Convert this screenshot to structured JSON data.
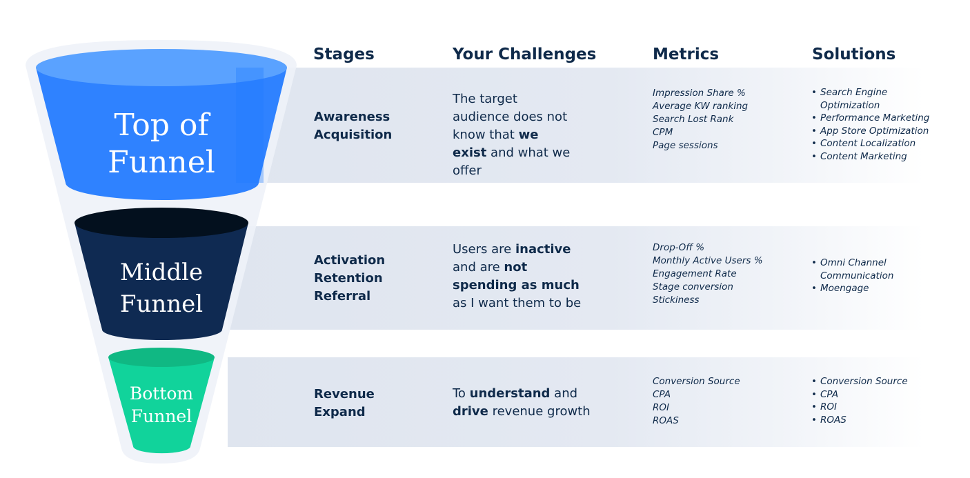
{
  "headers": {
    "stages": "Stages",
    "challenges": "Your Challenges",
    "metrics": "Metrics",
    "solutions": "Solutions"
  },
  "colors": {
    "top": "#2f82ff",
    "middle": "#0f2a52",
    "bottom": "#11d39b",
    "text": "#0f2a4a"
  },
  "rows": [
    {
      "funnel_label": [
        "Top of",
        "Funnel"
      ],
      "stages": [
        "Awareness",
        "Acquisition"
      ],
      "challenge": [
        {
          "text": "The target audience does not know that ",
          "bold": false
        },
        {
          "text": "we exist",
          "bold": true
        },
        {
          "text": " and what we offer",
          "bold": false
        }
      ],
      "metrics": [
        "Impression Share %",
        "Average KW ranking",
        "Search Lost Rank",
        "CPM",
        "Page sessions"
      ],
      "solutions": [
        "Search Engine Optimization",
        "Performance Marketing",
        "App Store Optimization",
        "Content Localization",
        "Content Marketing"
      ]
    },
    {
      "funnel_label": [
        "Middle",
        "Funnel"
      ],
      "stages": [
        "Activation",
        "Retention",
        "Referral"
      ],
      "challenge": [
        {
          "text": "Users are ",
          "bold": false
        },
        {
          "text": "inactive",
          "bold": true
        },
        {
          "text": " and are ",
          "bold": false
        },
        {
          "text": "not spending as much",
          "bold": true
        },
        {
          "text": " as I want them to be",
          "bold": false
        }
      ],
      "metrics": [
        "Drop-Off %",
        "Monthly Active Users %",
        "Engagement Rate",
        "Stage conversion",
        "Stickiness"
      ],
      "solutions": [
        "Omni Channel Communication",
        "Moengage"
      ]
    },
    {
      "funnel_label": [
        "Bottom",
        "Funnel"
      ],
      "stages": [
        "Revenue",
        "Expand"
      ],
      "challenge": [
        {
          "text": "To ",
          "bold": false
        },
        {
          "text": "understand",
          "bold": true
        },
        {
          "text": " and ",
          "bold": false
        },
        {
          "text": "drive",
          "bold": true
        },
        {
          "text": "  revenue growth",
          "bold": false
        }
      ],
      "metrics": [
        "Conversion Source",
        "CPA",
        "ROI",
        "ROAS"
      ],
      "solutions": [
        "Conversion Source",
        "CPA",
        "ROI",
        "ROAS"
      ]
    }
  ]
}
